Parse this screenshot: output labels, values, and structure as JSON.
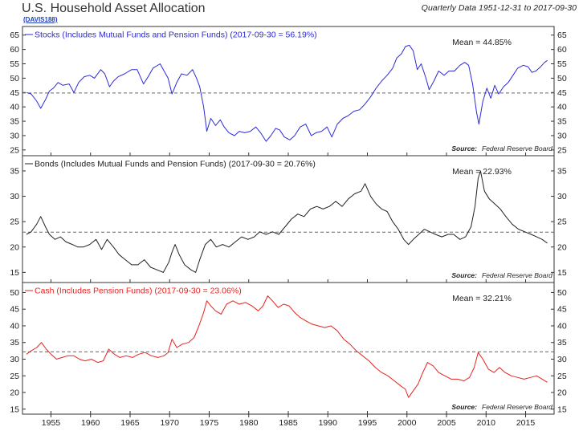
{
  "header": {
    "title": "U.S. Household Asset Allocation",
    "code_link": "(DAVIS188)",
    "subtitle": "Quarterly Data 1951-12-31 to 2017-09-30"
  },
  "colors": {
    "stocks": "#2b2bd9",
    "bonds": "#222222",
    "cash": "#e8231f",
    "axis": "#333333",
    "mean_line": "#666666"
  },
  "chart_data": [
    {
      "id": "stocks",
      "type": "line",
      "series_label": "Stocks (Includes Mutual Funds and Pension Funds) (2017-09-30 = 56.19%)",
      "mean_label": "Mean = 44.85%",
      "mean": 44.85,
      "source_label": "Source:",
      "source_name": "Federal Reserve Board",
      "ylim": [
        23,
        68
      ],
      "yticks": [
        25,
        30,
        35,
        40,
        45,
        50,
        55,
        60,
        65
      ],
      "color": "#2b2bd9",
      "points": [
        [
          1951.9,
          45.0
        ],
        [
          1952.5,
          44.5
        ],
        [
          1953.2,
          42.0
        ],
        [
          1953.7,
          39.5
        ],
        [
          1954.3,
          42.5
        ],
        [
          1954.8,
          45.5
        ],
        [
          1955.3,
          46.5
        ],
        [
          1955.9,
          48.5
        ],
        [
          1956.5,
          47.5
        ],
        [
          1957.3,
          48.0
        ],
        [
          1957.9,
          45.0
        ],
        [
          1958.5,
          48.5
        ],
        [
          1959.2,
          50.5
        ],
        [
          1959.9,
          51.0
        ],
        [
          1960.5,
          50.0
        ],
        [
          1961.3,
          53.0
        ],
        [
          1961.8,
          51.5
        ],
        [
          1962.4,
          47.0
        ],
        [
          1962.9,
          49.0
        ],
        [
          1963.5,
          50.5
        ],
        [
          1964.3,
          51.5
        ],
        [
          1965.2,
          53.0
        ],
        [
          1965.9,
          53.0
        ],
        [
          1966.7,
          48.0
        ],
        [
          1967.4,
          51.0
        ],
        [
          1967.9,
          53.5
        ],
        [
          1968.8,
          55.0
        ],
        [
          1969.4,
          52.0
        ],
        [
          1969.8,
          50.0
        ],
        [
          1970.3,
          44.5
        ],
        [
          1970.9,
          48.5
        ],
        [
          1971.5,
          51.5
        ],
        [
          1972.2,
          51.0
        ],
        [
          1972.9,
          53.0
        ],
        [
          1973.4,
          50.0
        ],
        [
          1973.8,
          47.0
        ],
        [
          1974.3,
          40.0
        ],
        [
          1974.7,
          31.5
        ],
        [
          1975.2,
          36.0
        ],
        [
          1975.8,
          33.5
        ],
        [
          1976.4,
          35.5
        ],
        [
          1976.9,
          33.0
        ],
        [
          1977.5,
          31.0
        ],
        [
          1978.2,
          30.0
        ],
        [
          1978.8,
          31.5
        ],
        [
          1979.5,
          31.0
        ],
        [
          1980.2,
          31.5
        ],
        [
          1980.9,
          33.0
        ],
        [
          1981.5,
          31.0
        ],
        [
          1982.2,
          28.0
        ],
        [
          1982.8,
          30.0
        ],
        [
          1983.4,
          32.5
        ],
        [
          1983.9,
          32.0
        ],
        [
          1984.5,
          29.5
        ],
        [
          1985.2,
          28.5
        ],
        [
          1985.8,
          30.0
        ],
        [
          1986.5,
          33.0
        ],
        [
          1987.2,
          34.0
        ],
        [
          1987.9,
          30.0
        ],
        [
          1988.5,
          31.0
        ],
        [
          1989.2,
          31.5
        ],
        [
          1989.9,
          33.0
        ],
        [
          1990.5,
          29.5
        ],
        [
          1991.2,
          34.0
        ],
        [
          1991.9,
          36.0
        ],
        [
          1992.6,
          37.0
        ],
        [
          1993.3,
          38.5
        ],
        [
          1994.0,
          39.0
        ],
        [
          1994.7,
          41.0
        ],
        [
          1995.4,
          43.5
        ],
        [
          1996.1,
          46.5
        ],
        [
          1996.8,
          49.0
        ],
        [
          1997.5,
          51.0
        ],
        [
          1998.2,
          53.5
        ],
        [
          1998.7,
          57.0
        ],
        [
          1999.3,
          58.5
        ],
        [
          1999.8,
          61.0
        ],
        [
          2000.3,
          61.5
        ],
        [
          2000.8,
          59.5
        ],
        [
          2001.3,
          53.0
        ],
        [
          2001.8,
          55.0
        ],
        [
          2002.4,
          50.0
        ],
        [
          2002.8,
          46.0
        ],
        [
          2003.4,
          49.0
        ],
        [
          2004.0,
          52.5
        ],
        [
          2004.7,
          51.0
        ],
        [
          2005.3,
          52.5
        ],
        [
          2006.0,
          52.5
        ],
        [
          2006.7,
          54.5
        ],
        [
          2007.3,
          55.5
        ],
        [
          2007.8,
          54.5
        ],
        [
          2008.3,
          48.0
        ],
        [
          2008.8,
          38.0
        ],
        [
          2009.1,
          34.0
        ],
        [
          2009.6,
          42.0
        ],
        [
          2010.1,
          46.5
        ],
        [
          2010.6,
          43.0
        ],
        [
          2011.1,
          47.5
        ],
        [
          2011.6,
          44.5
        ],
        [
          2012.2,
          47.0
        ],
        [
          2012.8,
          48.5
        ],
        [
          2013.4,
          51.0
        ],
        [
          2014.0,
          53.5
        ],
        [
          2014.7,
          54.5
        ],
        [
          2015.3,
          54.0
        ],
        [
          2015.8,
          52.0
        ],
        [
          2016.3,
          52.5
        ],
        [
          2016.9,
          54.0
        ],
        [
          2017.4,
          55.5
        ],
        [
          2017.75,
          56.19
        ]
      ]
    },
    {
      "id": "bonds",
      "type": "line",
      "series_label": "Bonds (Includes Mutual Funds and Pension Funds) (2017-09-30 = 20.76%)",
      "mean_label": "Mean = 22.93%",
      "mean": 22.93,
      "source_label": "Source:",
      "source_name": "Federal Reserve Board",
      "ylim": [
        13,
        38
      ],
      "yticks": [
        15,
        20,
        25,
        30,
        35
      ],
      "color": "#222222",
      "points": [
        [
          1951.9,
          22.5
        ],
        [
          1952.5,
          23.0
        ],
        [
          1953.2,
          24.5
        ],
        [
          1953.7,
          26.0
        ],
        [
          1954.3,
          24.0
        ],
        [
          1954.8,
          22.5
        ],
        [
          1955.5,
          21.5
        ],
        [
          1956.2,
          22.0
        ],
        [
          1956.9,
          21.0
        ],
        [
          1957.7,
          20.5
        ],
        [
          1958.4,
          20.0
        ],
        [
          1959.1,
          20.0
        ],
        [
          1959.9,
          20.5
        ],
        [
          1960.7,
          21.5
        ],
        [
          1961.4,
          19.5
        ],
        [
          1962.1,
          21.5
        ],
        [
          1962.9,
          20.0
        ],
        [
          1963.6,
          18.5
        ],
        [
          1964.4,
          17.5
        ],
        [
          1965.2,
          16.5
        ],
        [
          1966.0,
          16.5
        ],
        [
          1966.8,
          17.5
        ],
        [
          1967.6,
          16.0
        ],
        [
          1968.4,
          15.5
        ],
        [
          1969.2,
          15.0
        ],
        [
          1969.9,
          17.0
        ],
        [
          1970.3,
          19.0
        ],
        [
          1970.7,
          20.5
        ],
        [
          1971.2,
          18.5
        ],
        [
          1971.9,
          16.5
        ],
        [
          1972.7,
          15.5
        ],
        [
          1973.3,
          15.0
        ],
        [
          1973.8,
          17.5
        ],
        [
          1974.5,
          20.5
        ],
        [
          1975.2,
          21.5
        ],
        [
          1975.9,
          20.0
        ],
        [
          1976.7,
          20.5
        ],
        [
          1977.5,
          20.0
        ],
        [
          1978.3,
          21.0
        ],
        [
          1979.1,
          22.0
        ],
        [
          1979.9,
          21.5
        ],
        [
          1980.7,
          22.0
        ],
        [
          1981.4,
          23.0
        ],
        [
          1982.2,
          22.5
        ],
        [
          1983.0,
          23.0
        ],
        [
          1983.8,
          22.5
        ],
        [
          1984.6,
          24.0
        ],
        [
          1985.4,
          25.5
        ],
        [
          1986.2,
          26.5
        ],
        [
          1987.0,
          26.0
        ],
        [
          1987.8,
          27.5
        ],
        [
          1988.6,
          28.0
        ],
        [
          1989.4,
          27.5
        ],
        [
          1990.2,
          28.0
        ],
        [
          1991.0,
          29.0
        ],
        [
          1991.8,
          28.0
        ],
        [
          1992.6,
          29.5
        ],
        [
          1993.4,
          30.5
        ],
        [
          1994.2,
          31.0
        ],
        [
          1994.7,
          32.5
        ],
        [
          1995.4,
          30.0
        ],
        [
          1996.1,
          28.5
        ],
        [
          1996.8,
          27.5
        ],
        [
          1997.5,
          27.0
        ],
        [
          1998.2,
          25.0
        ],
        [
          1998.9,
          23.5
        ],
        [
          1999.6,
          21.5
        ],
        [
          2000.2,
          20.5
        ],
        [
          2000.8,
          21.5
        ],
        [
          2001.5,
          22.5
        ],
        [
          2002.2,
          23.5
        ],
        [
          2002.9,
          23.0
        ],
        [
          2003.6,
          22.5
        ],
        [
          2004.4,
          22.0
        ],
        [
          2005.2,
          22.5
        ],
        [
          2005.9,
          22.5
        ],
        [
          2006.7,
          21.5
        ],
        [
          2007.4,
          22.0
        ],
        [
          2008.1,
          24.0
        ],
        [
          2008.6,
          28.0
        ],
        [
          2009.0,
          33.5
        ],
        [
          2009.3,
          35.0
        ],
        [
          2009.8,
          31.0
        ],
        [
          2010.4,
          29.5
        ],
        [
          2011.1,
          28.5
        ],
        [
          2011.8,
          27.5
        ],
        [
          2012.5,
          26.0
        ],
        [
          2013.3,
          24.5
        ],
        [
          2014.1,
          23.5
        ],
        [
          2014.9,
          23.0
        ],
        [
          2015.7,
          22.5
        ],
        [
          2016.4,
          22.0
        ],
        [
          2017.1,
          21.5
        ],
        [
          2017.75,
          20.76
        ]
      ]
    },
    {
      "id": "cash",
      "type": "line",
      "series_label": "Cash (Includes Pension Funds) (2017-09-30 = 23.06%)",
      "mean_label": "Mean = 32.21%",
      "mean": 32.21,
      "source_label": "Source:",
      "source_name": "Federal Reserve Board",
      "ylim": [
        13.5,
        53
      ],
      "yticks": [
        15,
        20,
        25,
        30,
        35,
        40,
        45,
        50
      ],
      "color": "#e8231f",
      "points": [
        [
          1951.9,
          31.5
        ],
        [
          1952.5,
          32.5
        ],
        [
          1953.2,
          33.5
        ],
        [
          1953.8,
          35.0
        ],
        [
          1954.4,
          33.0
        ],
        [
          1955.0,
          31.5
        ],
        [
          1955.7,
          30.0
        ],
        [
          1956.4,
          30.5
        ],
        [
          1957.1,
          31.0
        ],
        [
          1957.9,
          31.0
        ],
        [
          1958.6,
          30.0
        ],
        [
          1959.3,
          29.5
        ],
        [
          1960.1,
          30.0
        ],
        [
          1960.9,
          29.0
        ],
        [
          1961.6,
          29.5
        ],
        [
          1962.3,
          33.0
        ],
        [
          1963.0,
          31.5
        ],
        [
          1963.7,
          30.5
        ],
        [
          1964.5,
          31.0
        ],
        [
          1965.3,
          30.5
        ],
        [
          1966.1,
          31.5
        ],
        [
          1966.9,
          32.0
        ],
        [
          1967.7,
          31.0
        ],
        [
          1968.5,
          30.5
        ],
        [
          1969.3,
          31.0
        ],
        [
          1969.8,
          32.0
        ],
        [
          1970.3,
          36.0
        ],
        [
          1970.9,
          33.5
        ],
        [
          1971.6,
          34.5
        ],
        [
          1972.4,
          35.0
        ],
        [
          1973.1,
          36.5
        ],
        [
          1973.7,
          40.0
        ],
        [
          1974.3,
          44.0
        ],
        [
          1974.7,
          47.5
        ],
        [
          1975.2,
          46.0
        ],
        [
          1975.8,
          44.5
        ],
        [
          1976.5,
          43.5
        ],
        [
          1977.2,
          46.5
        ],
        [
          1978.0,
          47.5
        ],
        [
          1978.8,
          46.5
        ],
        [
          1979.6,
          47.0
        ],
        [
          1980.4,
          46.0
        ],
        [
          1981.2,
          44.5
        ],
        [
          1981.8,
          46.0
        ],
        [
          1982.4,
          49.0
        ],
        [
          1983.0,
          47.5
        ],
        [
          1983.7,
          45.5
        ],
        [
          1984.4,
          46.5
        ],
        [
          1985.1,
          46.0
        ],
        [
          1985.8,
          44.0
        ],
        [
          1986.5,
          42.5
        ],
        [
          1987.2,
          41.5
        ],
        [
          1988.0,
          40.5
        ],
        [
          1988.8,
          40.0
        ],
        [
          1989.6,
          39.5
        ],
        [
          1990.4,
          40.0
        ],
        [
          1991.2,
          38.5
        ],
        [
          1992.0,
          36.0
        ],
        [
          1992.8,
          34.5
        ],
        [
          1993.6,
          32.5
        ],
        [
          1994.4,
          31.0
        ],
        [
          1995.2,
          29.5
        ],
        [
          1996.0,
          27.5
        ],
        [
          1996.8,
          26.0
        ],
        [
          1997.6,
          25.0
        ],
        [
          1998.4,
          23.5
        ],
        [
          1999.2,
          22.0
        ],
        [
          1999.8,
          21.0
        ],
        [
          2000.2,
          18.5
        ],
        [
          2000.8,
          20.5
        ],
        [
          2001.4,
          22.5
        ],
        [
          2002.0,
          26.0
        ],
        [
          2002.6,
          29.0
        ],
        [
          2003.3,
          28.0
        ],
        [
          2004.0,
          26.0
        ],
        [
          2004.8,
          25.0
        ],
        [
          2005.6,
          24.0
        ],
        [
          2006.4,
          24.0
        ],
        [
          2007.2,
          23.5
        ],
        [
          2007.9,
          24.5
        ],
        [
          2008.5,
          27.5
        ],
        [
          2009.0,
          32.0
        ],
        [
          2009.6,
          30.0
        ],
        [
          2010.3,
          27.0
        ],
        [
          2011.0,
          26.0
        ],
        [
          2011.7,
          27.5
        ],
        [
          2012.4,
          26.0
        ],
        [
          2013.2,
          25.0
        ],
        [
          2014.0,
          24.5
        ],
        [
          2014.8,
          24.0
        ],
        [
          2015.6,
          24.5
        ],
        [
          2016.4,
          25.0
        ],
        [
          2017.1,
          24.0
        ],
        [
          2017.75,
          23.06
        ]
      ]
    }
  ],
  "x_axis": {
    "xlim": [
      1951.4,
      2018.6
    ],
    "ticks": [
      1955,
      1960,
      1965,
      1970,
      1975,
      1980,
      1985,
      1990,
      1995,
      2000,
      2005,
      2010,
      2015
    ]
  }
}
